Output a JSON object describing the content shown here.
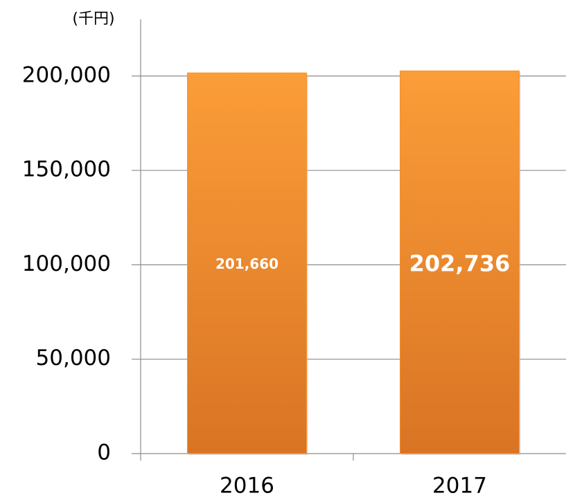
{
  "chart_data": {
    "type": "bar",
    "y_label": "(千円)",
    "categories": [
      "2016",
      "2017"
    ],
    "values": [
      201660,
      202736
    ],
    "value_labels": [
      "201,660",
      "202,736"
    ],
    "color": "#f7922f",
    "ylim": [
      0,
      230000
    ],
    "yticks": [
      0,
      {
        "value": 50000,
        "label": "50,000"
      },
      {
        "value": 100000,
        "label": "100,000"
      },
      {
        "value": 150000,
        "label": "150,000"
      },
      {
        "value": 200000,
        "label": "200,000"
      }
    ],
    "grid": true
  }
}
